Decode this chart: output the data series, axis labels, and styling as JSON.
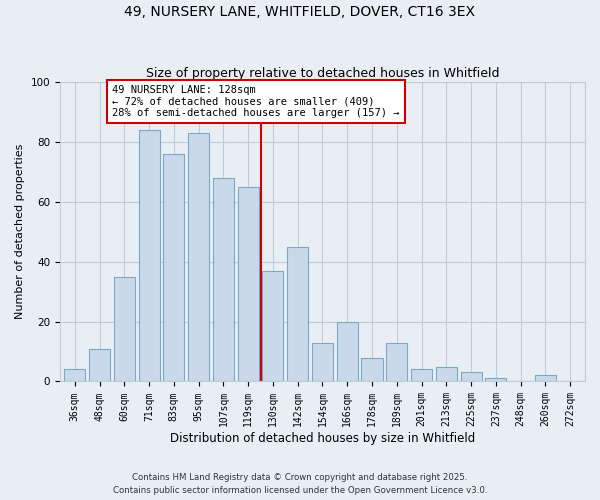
{
  "title1": "49, NURSERY LANE, WHITFIELD, DOVER, CT16 3EX",
  "title2": "Size of property relative to detached houses in Whitfield",
  "xlabel": "Distribution of detached houses by size in Whitfield",
  "ylabel": "Number of detached properties",
  "bar_labels": [
    "36sqm",
    "48sqm",
    "60sqm",
    "71sqm",
    "83sqm",
    "95sqm",
    "107sqm",
    "119sqm",
    "130sqm",
    "142sqm",
    "154sqm",
    "166sqm",
    "178sqm",
    "189sqm",
    "201sqm",
    "213sqm",
    "225sqm",
    "237sqm",
    "248sqm",
    "260sqm",
    "272sqm"
  ],
  "bar_values": [
    4,
    11,
    35,
    84,
    76,
    83,
    68,
    65,
    37,
    45,
    13,
    20,
    8,
    13,
    4,
    5,
    3,
    1,
    0,
    2,
    0
  ],
  "bar_color": "#c9d9ea",
  "bar_edge_color": "#7aaac8",
  "vline_x_bar_idx": 8,
  "vline_color": "#cc0000",
  "annotation_text": "49 NURSERY LANE: 128sqm\n← 72% of detached houses are smaller (409)\n28% of semi-detached houses are larger (157) →",
  "annotation_box_color": "#ffffff",
  "annotation_box_edge": "#cc0000",
  "footer1": "Contains HM Land Registry data © Crown copyright and database right 2025.",
  "footer2": "Contains public sector information licensed under the Open Government Licence v3.0.",
  "bg_color": "#e8eef4",
  "plot_bg_color": "#e8eef4",
  "grid_color": "#c0ccd8",
  "ylim": [
    0,
    100
  ],
  "title_fontsize": 10,
  "subtitle_fontsize": 9,
  "tick_fontsize": 7,
  "ylabel_fontsize": 8,
  "xlabel_fontsize": 8.5
}
